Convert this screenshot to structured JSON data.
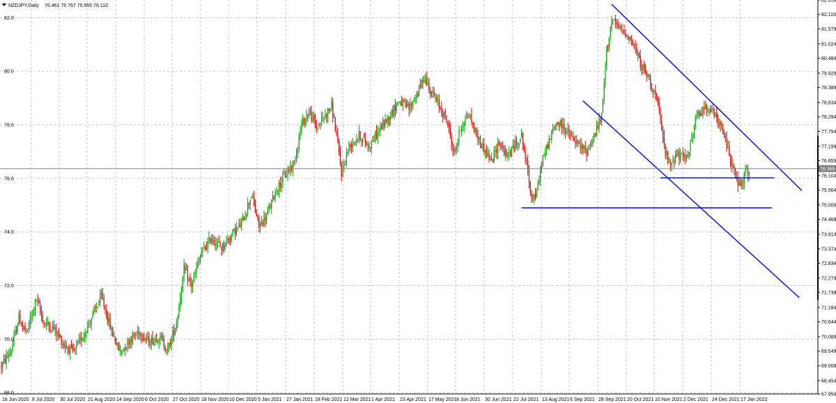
{
  "header": {
    "symbol_info": "NZDJPY,Daily",
    "ohlc": "76.461 76.767 75.955 76.110"
  },
  "colors": {
    "background": "#ffffff",
    "grid": "#c0c0c0",
    "bull": "#00a000",
    "bear": "#e00000",
    "trendline": "#0000ee",
    "current_price_line": "#808080",
    "price_tag_bg": "#808080",
    "price_tag_text": "#ffffff"
  },
  "chart_data": {
    "type": "candlestick",
    "instrument": "NZDJPY",
    "timeframe": "Daily",
    "ylim": [
      67.954,
      82.659
    ],
    "current_price": "76.365",
    "y_ticks_left": [
      "82.0",
      "80.0",
      "78.0",
      "76.0",
      "74.0",
      "72.0",
      "70.0",
      "68.0"
    ],
    "y_ticks_right": [
      "82.659",
      "82.119",
      "81.579",
      "81.024",
      "80.484",
      "79.929",
      "79.389",
      "78.834",
      "78.294",
      "77.754",
      "77.199",
      "76.659",
      "76.104",
      "75.564",
      "75.009",
      "74.469",
      "73.914",
      "73.374",
      "72.834",
      "72.279",
      "71.739",
      "71.184",
      "70.644",
      "70.089",
      "69.549",
      "69.009",
      "68.454",
      "67.954"
    ],
    "x_ticks": [
      "16 Jun 2020",
      "8 Jul 2020",
      "30 Jul 2020",
      "21 Aug 2020",
      "14 Sep 2020",
      "6 Oct 2020",
      "27 Oct 2020",
      "18 Nov 2020",
      "10 Dec 2020",
      "5 Jan 2021",
      "27 Jan 2021",
      "18 Feb 2021",
      "12 Mar 2021",
      "1 Apr 2021",
      "23 Apr 2021",
      "17 May 2021",
      "8 Jun 2021",
      "30 Jun 2021",
      "22 Jul 2021",
      "13 Aug 2021",
      "6 Sep 2021",
      "28 Sep 2021",
      "20 Oct 2021",
      "10 Nov 2021",
      "2 Dec 2021",
      "24 Dec 2021",
      "17 Jan 2022"
    ],
    "trend_anchors": [
      {
        "t": 0,
        "p": 69.0
      },
      {
        "t": 8,
        "p": 69.6
      },
      {
        "t": 14,
        "p": 70.8
      },
      {
        "t": 20,
        "p": 70.2
      },
      {
        "t": 28,
        "p": 71.5
      },
      {
        "t": 34,
        "p": 70.6
      },
      {
        "t": 42,
        "p": 70.4
      },
      {
        "t": 50,
        "p": 69.8
      },
      {
        "t": 58,
        "p": 69.5
      },
      {
        "t": 66,
        "p": 70.2
      },
      {
        "t": 72,
        "p": 70.8
      },
      {
        "t": 80,
        "p": 71.6
      },
      {
        "t": 88,
        "p": 70.3
      },
      {
        "t": 95,
        "p": 69.5
      },
      {
        "t": 103,
        "p": 70.0
      },
      {
        "t": 110,
        "p": 70.3
      },
      {
        "t": 118,
        "p": 69.9
      },
      {
        "t": 126,
        "p": 70.1
      },
      {
        "t": 133,
        "p": 69.6
      },
      {
        "t": 140,
        "p": 70.6
      },
      {
        "t": 146,
        "p": 72.6
      },
      {
        "t": 152,
        "p": 72.0
      },
      {
        "t": 160,
        "p": 73.2
      },
      {
        "t": 168,
        "p": 73.8
      },
      {
        "t": 176,
        "p": 73.4
      },
      {
        "t": 184,
        "p": 73.9
      },
      {
        "t": 192,
        "p": 74.3
      },
      {
        "t": 200,
        "p": 75.4
      },
      {
        "t": 206,
        "p": 74.2
      },
      {
        "t": 212,
        "p": 74.6
      },
      {
        "t": 220,
        "p": 75.6
      },
      {
        "t": 228,
        "p": 76.2
      },
      {
        "t": 234,
        "p": 76.6
      },
      {
        "t": 240,
        "p": 78.0
      },
      {
        "t": 246,
        "p": 78.5
      },
      {
        "t": 252,
        "p": 77.9
      },
      {
        "t": 258,
        "p": 78.3
      },
      {
        "t": 264,
        "p": 78.7
      },
      {
        "t": 268,
        "p": 77.6
      },
      {
        "t": 272,
        "p": 76.2
      },
      {
        "t": 278,
        "p": 77.2
      },
      {
        "t": 286,
        "p": 77.6
      },
      {
        "t": 294,
        "p": 77.2
      },
      {
        "t": 302,
        "p": 77.8
      },
      {
        "t": 310,
        "p": 78.3
      },
      {
        "t": 318,
        "p": 78.9
      },
      {
        "t": 326,
        "p": 78.6
      },
      {
        "t": 334,
        "p": 79.3
      },
      {
        "t": 338,
        "p": 79.8
      },
      {
        "t": 344,
        "p": 79.2
      },
      {
        "t": 350,
        "p": 78.7
      },
      {
        "t": 356,
        "p": 78.2
      },
      {
        "t": 362,
        "p": 76.9
      },
      {
        "t": 368,
        "p": 78.0
      },
      {
        "t": 374,
        "p": 78.4
      },
      {
        "t": 380,
        "p": 77.6
      },
      {
        "t": 386,
        "p": 77.1
      },
      {
        "t": 392,
        "p": 76.6
      },
      {
        "t": 398,
        "p": 77.4
      },
      {
        "t": 404,
        "p": 76.8
      },
      {
        "t": 410,
        "p": 77.2
      },
      {
        "t": 416,
        "p": 77.6
      },
      {
        "t": 420,
        "p": 76.5
      },
      {
        "t": 424,
        "p": 75.3
      },
      {
        "t": 428,
        "p": 75.4
      },
      {
        "t": 432,
        "p": 76.6
      },
      {
        "t": 438,
        "p": 77.4
      },
      {
        "t": 444,
        "p": 78.1
      },
      {
        "t": 450,
        "p": 77.9
      },
      {
        "t": 456,
        "p": 77.5
      },
      {
        "t": 462,
        "p": 77.2
      },
      {
        "t": 468,
        "p": 77.0
      },
      {
        "t": 474,
        "p": 77.6
      },
      {
        "t": 480,
        "p": 78.3
      },
      {
        "t": 484,
        "p": 80.8
      },
      {
        "t": 488,
        "p": 81.9
      },
      {
        "t": 494,
        "p": 81.6
      },
      {
        "t": 500,
        "p": 81.4
      },
      {
        "t": 506,
        "p": 80.9
      },
      {
        "t": 512,
        "p": 80.2
      },
      {
        "t": 518,
        "p": 79.7
      },
      {
        "t": 524,
        "p": 79.0
      },
      {
        "t": 530,
        "p": 77.2
      },
      {
        "t": 534,
        "p": 76.5
      },
      {
        "t": 540,
        "p": 76.9
      },
      {
        "t": 546,
        "p": 76.7
      },
      {
        "t": 550,
        "p": 77.1
      },
      {
        "t": 556,
        "p": 78.3
      },
      {
        "t": 562,
        "p": 78.6
      },
      {
        "t": 566,
        "p": 78.7
      },
      {
        "t": 572,
        "p": 78.2
      },
      {
        "t": 578,
        "p": 77.6
      },
      {
        "t": 584,
        "p": 76.6
      },
      {
        "t": 588,
        "p": 75.9
      },
      {
        "t": 592,
        "p": 75.7
      },
      {
        "t": 595,
        "p": 76.3
      },
      {
        "t": 598,
        "p": 76.1
      }
    ],
    "trendlines": [
      {
        "name": "upper-channel",
        "t1": 488,
        "p1": 82.5,
        "t2": 640,
        "p2": 75.55
      },
      {
        "name": "lower-channel",
        "t1": 465,
        "p1": 78.9,
        "t2": 638,
        "p2": 71.55
      },
      {
        "name": "support-76",
        "t1": 527,
        "p1": 76.02,
        "t2": 618,
        "p2": 76.02
      },
      {
        "name": "support-74.9",
        "t1": 416,
        "p1": 74.9,
        "t2": 616,
        "p2": 74.9
      }
    ]
  }
}
